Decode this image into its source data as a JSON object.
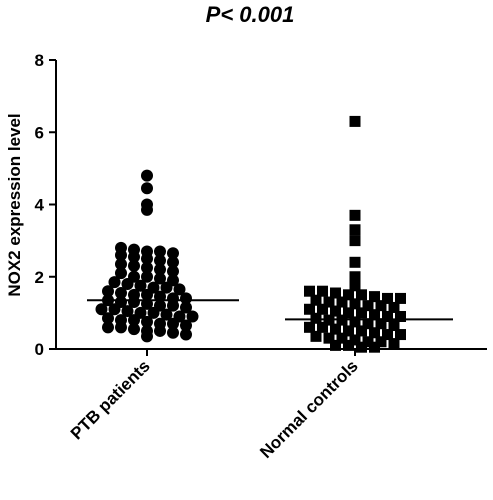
{
  "chart_data": {
    "type": "dot-plot",
    "title": "P< 0.001",
    "y_label": "NOX2 expression level",
    "categories": [
      "PTB patients",
      "Normal controls"
    ],
    "ylim": [
      0,
      8
    ],
    "yticks": [
      0,
      2,
      4,
      6,
      8
    ],
    "color": "#000000",
    "groups": [
      {
        "marker": "circle",
        "mean": 1.35,
        "values": [
          4.8,
          4.45,
          4.0,
          3.85,
          2.8,
          2.75,
          2.7,
          2.7,
          2.65,
          2.6,
          2.55,
          2.5,
          2.45,
          2.4,
          2.35,
          2.3,
          2.25,
          2.2,
          2.15,
          2.1,
          2.0,
          2.0,
          1.95,
          1.9,
          1.85,
          1.8,
          1.75,
          1.7,
          1.7,
          1.65,
          1.6,
          1.55,
          1.5,
          1.5,
          1.45,
          1.4,
          1.4,
          1.35,
          1.3,
          1.3,
          1.25,
          1.2,
          1.2,
          1.15,
          1.1,
          1.1,
          1.05,
          1.0,
          1.0,
          0.95,
          0.9,
          0.9,
          0.85,
          0.8,
          0.8,
          0.75,
          0.7,
          0.7,
          0.65,
          0.6,
          0.6,
          0.55,
          0.5,
          0.5,
          0.45,
          0.4,
          0.35
        ]
      },
      {
        "marker": "square",
        "mean": 0.82,
        "values": [
          6.3,
          3.7,
          3.3,
          3.0,
          2.4,
          2.0,
          1.75,
          1.6,
          1.6,
          1.55,
          1.5,
          1.5,
          1.45,
          1.4,
          1.4,
          1.35,
          1.3,
          1.3,
          1.25,
          1.2,
          1.2,
          1.15,
          1.1,
          1.1,
          1.05,
          1.0,
          1.0,
          0.95,
          0.9,
          0.9,
          0.85,
          0.8,
          0.8,
          0.75,
          0.7,
          0.7,
          0.65,
          0.6,
          0.6,
          0.55,
          0.5,
          0.5,
          0.45,
          0.4,
          0.4,
          0.35,
          0.3,
          0.3,
          0.25,
          0.2,
          0.2,
          0.15,
          0.1,
          0.1,
          0.05,
          0.05
        ]
      }
    ]
  }
}
